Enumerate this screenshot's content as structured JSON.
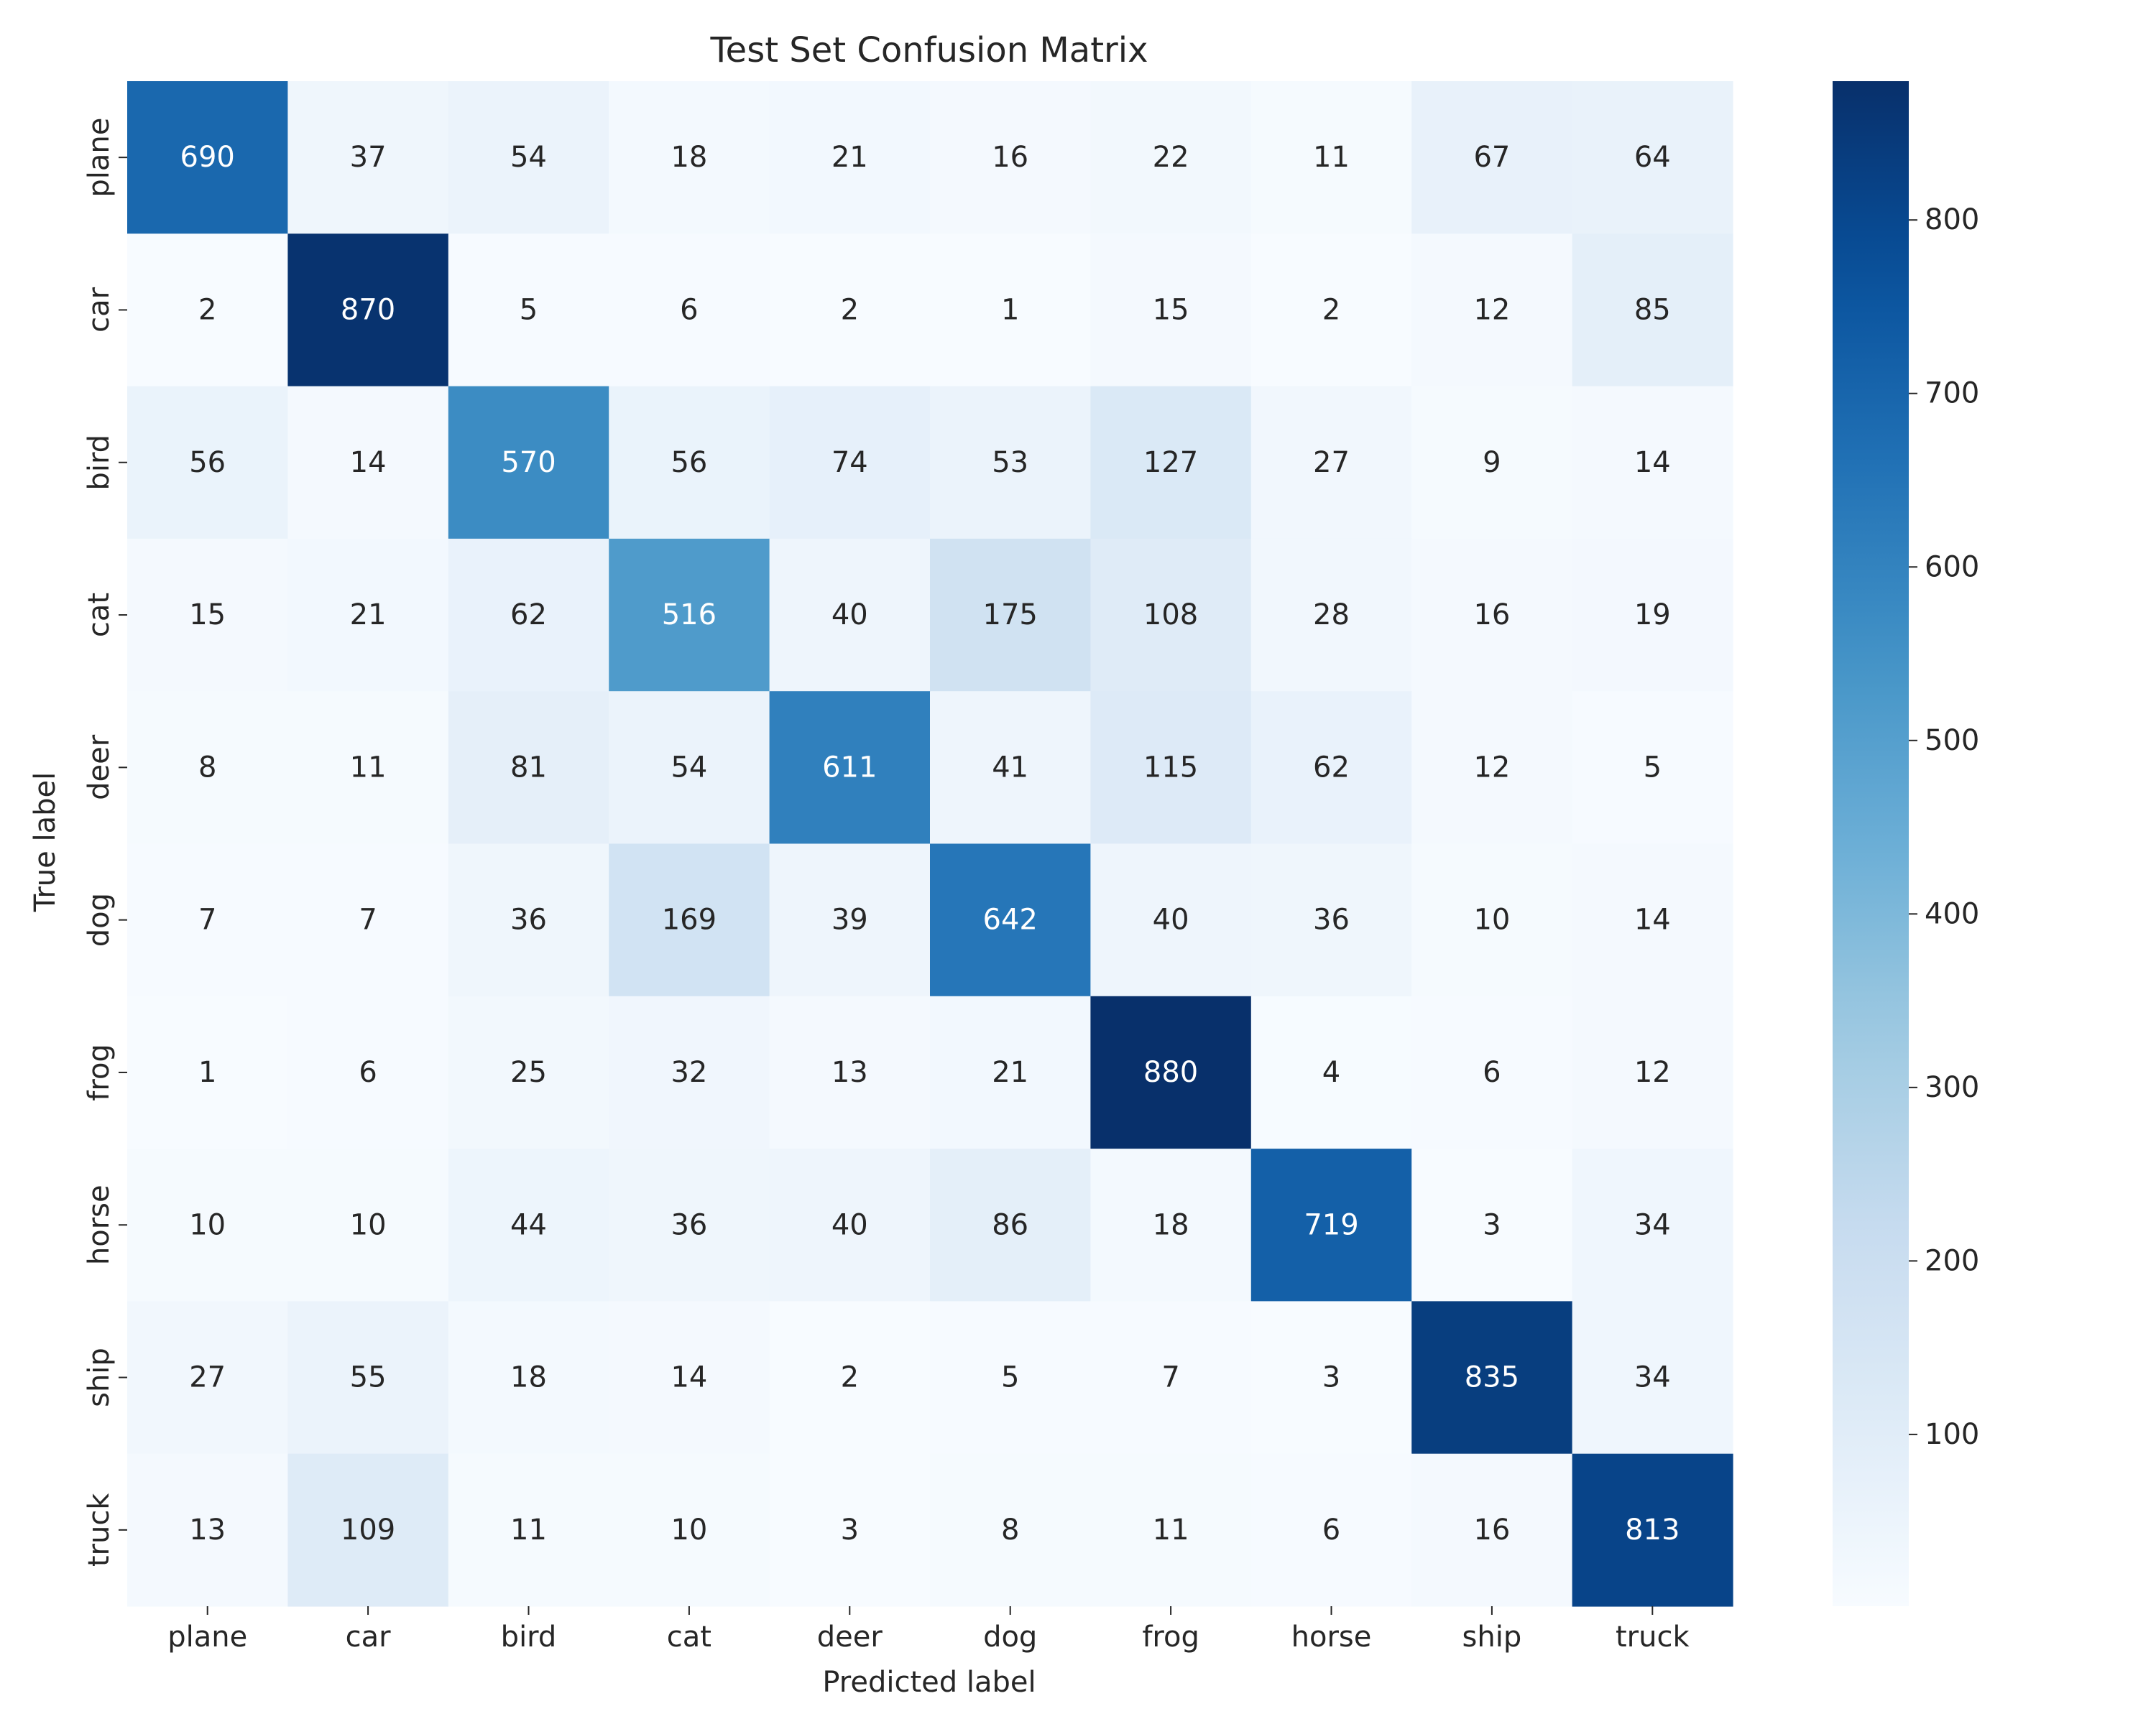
{
  "chart_data": {
    "type": "heatmap",
    "title": "Test Set Confusion Matrix",
    "xlabel": "Predicted label",
    "ylabel": "True label",
    "x_categories": [
      "plane",
      "car",
      "bird",
      "cat",
      "deer",
      "dog",
      "frog",
      "horse",
      "ship",
      "truck"
    ],
    "y_categories": [
      "plane",
      "car",
      "bird",
      "cat",
      "deer",
      "dog",
      "frog",
      "horse",
      "ship",
      "truck"
    ],
    "values": [
      [
        690,
        37,
        54,
        18,
        21,
        16,
        22,
        11,
        67,
        64
      ],
      [
        2,
        870,
        5,
        6,
        2,
        1,
        15,
        2,
        12,
        85
      ],
      [
        56,
        14,
        570,
        56,
        74,
        53,
        127,
        27,
        9,
        14
      ],
      [
        15,
        21,
        62,
        516,
        40,
        175,
        108,
        28,
        16,
        19
      ],
      [
        8,
        11,
        81,
        54,
        611,
        41,
        115,
        62,
        12,
        5
      ],
      [
        7,
        7,
        36,
        169,
        39,
        642,
        40,
        36,
        10,
        14
      ],
      [
        1,
        6,
        25,
        32,
        13,
        21,
        880,
        4,
        6,
        12
      ],
      [
        10,
        10,
        44,
        36,
        40,
        86,
        18,
        719,
        3,
        34
      ],
      [
        27,
        55,
        18,
        14,
        2,
        5,
        7,
        3,
        835,
        34
      ],
      [
        13,
        109,
        11,
        10,
        3,
        8,
        11,
        6,
        16,
        813
      ]
    ],
    "colormap": "Blues",
    "vmin": 1,
    "vmax": 880,
    "colorbar_ticks": [
      100,
      200,
      300,
      400,
      500,
      600,
      700,
      800
    ]
  }
}
